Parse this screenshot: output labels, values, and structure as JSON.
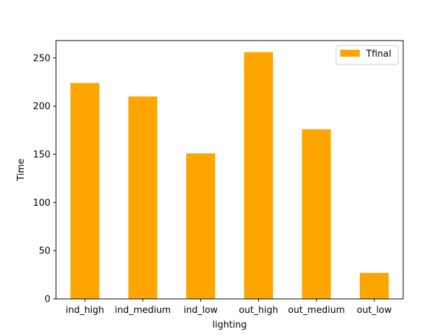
{
  "chart_data": {
    "type": "bar",
    "title": "",
    "xlabel": "lighting",
    "ylabel": "Time",
    "categories": [
      "ind_high",
      "ind_medium",
      "ind_low",
      "out_high",
      "out_medium",
      "out_low"
    ],
    "series": [
      {
        "name": "Tfinal",
        "values": [
          224,
          210,
          151,
          256,
          176,
          27
        ],
        "color": "#ffa500"
      }
    ],
    "ylim": [
      0,
      268
    ],
    "yticks": [
      0,
      50,
      100,
      150,
      200,
      250
    ],
    "grid": false,
    "legend_position": "top-right"
  }
}
